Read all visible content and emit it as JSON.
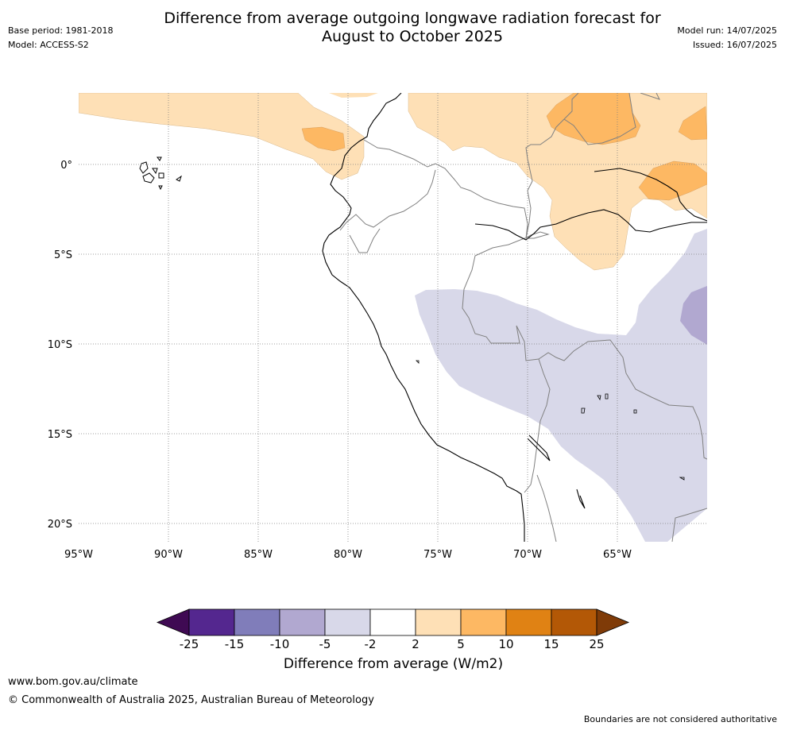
{
  "header": {
    "base_period": "Base period: 1981-2018",
    "model": "Model: ACCESS-S2",
    "title_line1": "Difference from average outgoing longwave radiation forecast for",
    "title_line2": "August to October 2025",
    "model_run": "Model run: 14/07/2025",
    "issued": "Issued: 16/07/2025"
  },
  "map": {
    "lon_labels": [
      "95°W",
      "90°W",
      "85°W",
      "80°W",
      "75°W",
      "70°W",
      "65°W"
    ],
    "lat_labels": [
      "0°",
      "5°S",
      "10°S",
      "15°S",
      "20°S"
    ]
  },
  "colorbar": {
    "tick_labels": [
      "-25",
      "-15",
      "-10",
      "-5",
      "-2",
      "2",
      "5",
      "10",
      "15",
      "25"
    ],
    "colors": [
      "#3f0a53",
      "#54278f",
      "#807dba",
      "#b1a8d0",
      "#d8d8e9",
      "#ffffff",
      "#fee0b6",
      "#fdb863",
      "#e08214",
      "#b35806",
      "#7f3b08"
    ],
    "label": "Difference from average (W/m2)"
  },
  "footer": {
    "url": "www.bom.gov.au/climate",
    "copyright": "© Commonwealth of Australia 2025, Australian Bureau of Meteorology",
    "note": "Boundaries are not considered authoritative"
  }
}
